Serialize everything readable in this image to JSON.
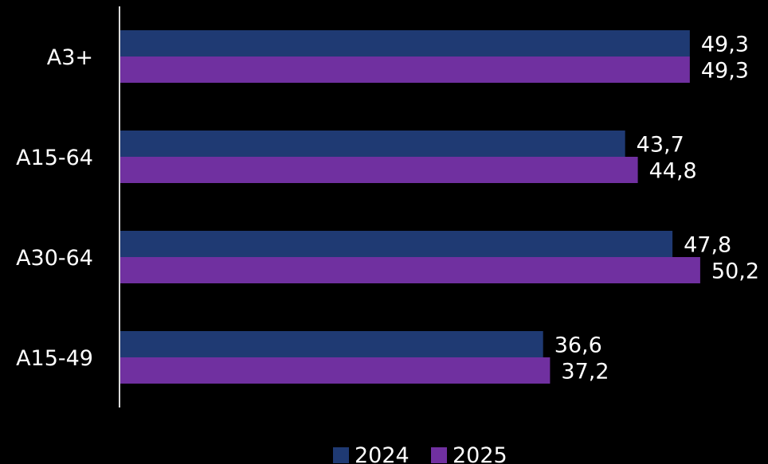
{
  "chart_data": {
    "type": "bar",
    "orientation": "horizontal",
    "categories": [
      "A3+",
      "A15-64",
      "A30-64",
      "A15-49"
    ],
    "series": [
      {
        "name": "2024",
        "color": "#1f3a73",
        "values": [
          49.3,
          43.7,
          47.8,
          36.6
        ],
        "labels": [
          "49,3",
          "43,7",
          "47,8",
          "36,6"
        ]
      },
      {
        "name": "2025",
        "color": "#7030a0",
        "values": [
          49.3,
          44.8,
          50.2,
          37.2
        ],
        "labels": [
          "49,3",
          "44,8",
          "50,2",
          "37,2"
        ]
      }
    ],
    "title": "",
    "xlabel": "",
    "ylabel": "",
    "xlim": [
      0,
      55
    ],
    "grid": false,
    "legend": "bottom-center"
  }
}
